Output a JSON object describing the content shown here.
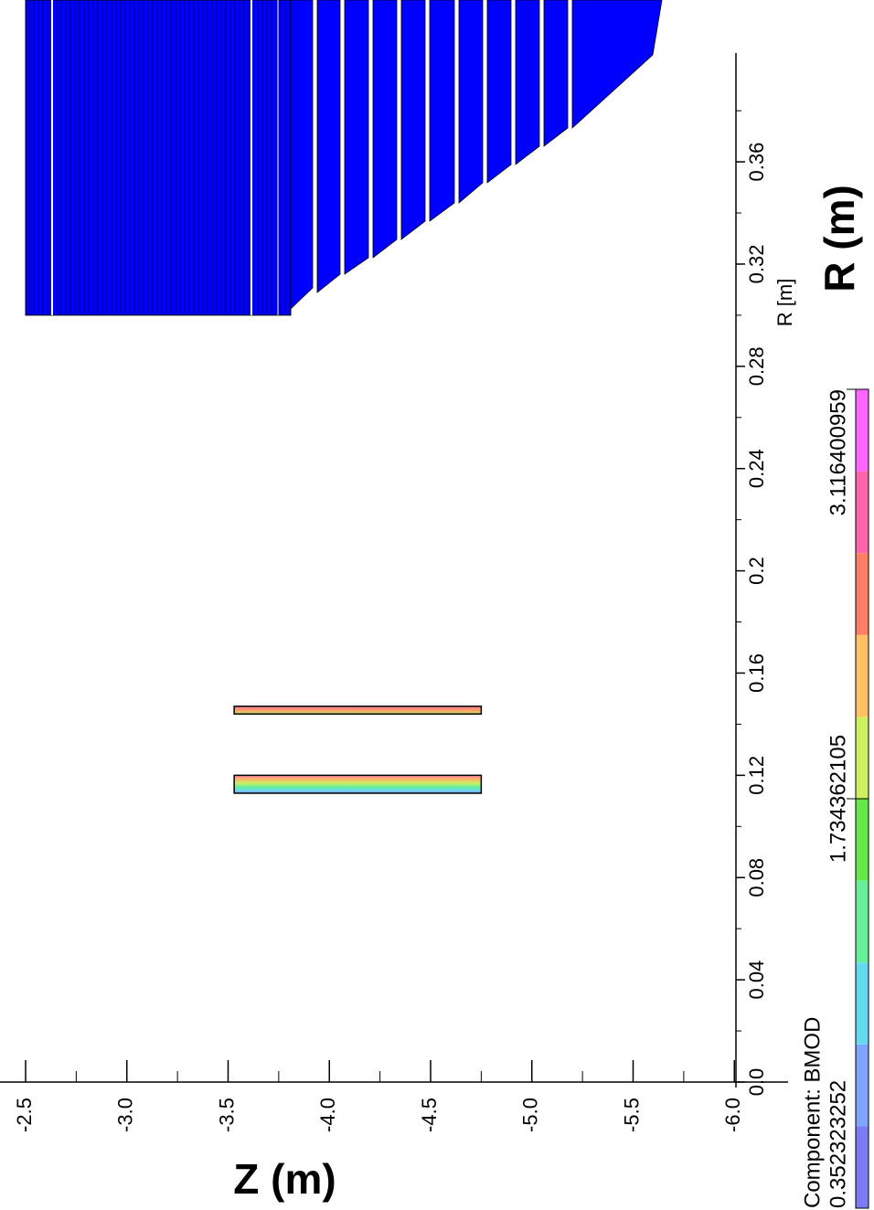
{
  "chart_data": {
    "type": "heatmap",
    "title": "",
    "xlabel": "R (m)",
    "xlabel_secondary": "R [m]",
    "ylabel": "Z (m)",
    "xlim": [
      0.0,
      0.4
    ],
    "ylim": [
      -6.0,
      -2.4
    ],
    "x_ticks": [
      "0.0",
      "0.04",
      "0.08",
      "0.12",
      "0.16",
      "0.2",
      "0.24",
      "0.28",
      "0.32",
      "0.36"
    ],
    "x_tick_values": [
      0.0,
      0.04,
      0.08,
      0.12,
      0.16,
      0.2,
      0.24,
      0.28,
      0.32,
      0.36
    ],
    "y_ticks": [
      "-2.5",
      "-3.0",
      "-3.5",
      "-4.0",
      "-4.5",
      "-5.0",
      "-5.5",
      "-6.0"
    ],
    "y_tick_values": [
      -2.5,
      -3.0,
      -3.5,
      -4.0,
      -4.5,
      -5.0,
      -5.5,
      -6.0
    ],
    "grid": false,
    "orientation": "rotated-90",
    "regions": [
      {
        "name": "inner-field-slab-1",
        "r_range": [
          0.113,
          0.12
        ],
        "z_range": [
          -3.53,
          -4.75
        ],
        "values": [
          1.9,
          3.1
        ]
      },
      {
        "name": "inner-field-slab-2",
        "r_range": [
          0.144,
          0.147
        ],
        "z_range": [
          -3.53,
          -4.75
        ],
        "values": [
          2.2,
          3.0
        ]
      },
      {
        "name": "outer-coil-block",
        "r_range": [
          0.3,
          0.4
        ],
        "z_range": [
          -2.4,
          -5.7
        ],
        "color": "#0000ff"
      }
    ],
    "legend": {
      "title": "Component: BMOD",
      "min_label": "0.352323252",
      "mid_label": "1.734362105",
      "max_label": "3.116400959",
      "placement": "bottom-right",
      "colors": [
        "#7b7bf5",
        "#7fa6ff",
        "#66d9f0",
        "#66ee99",
        "#66e84a",
        "#ccf060",
        "#ffc066",
        "#ff7f66",
        "#ff66aa",
        "#ff66ff"
      ]
    }
  }
}
